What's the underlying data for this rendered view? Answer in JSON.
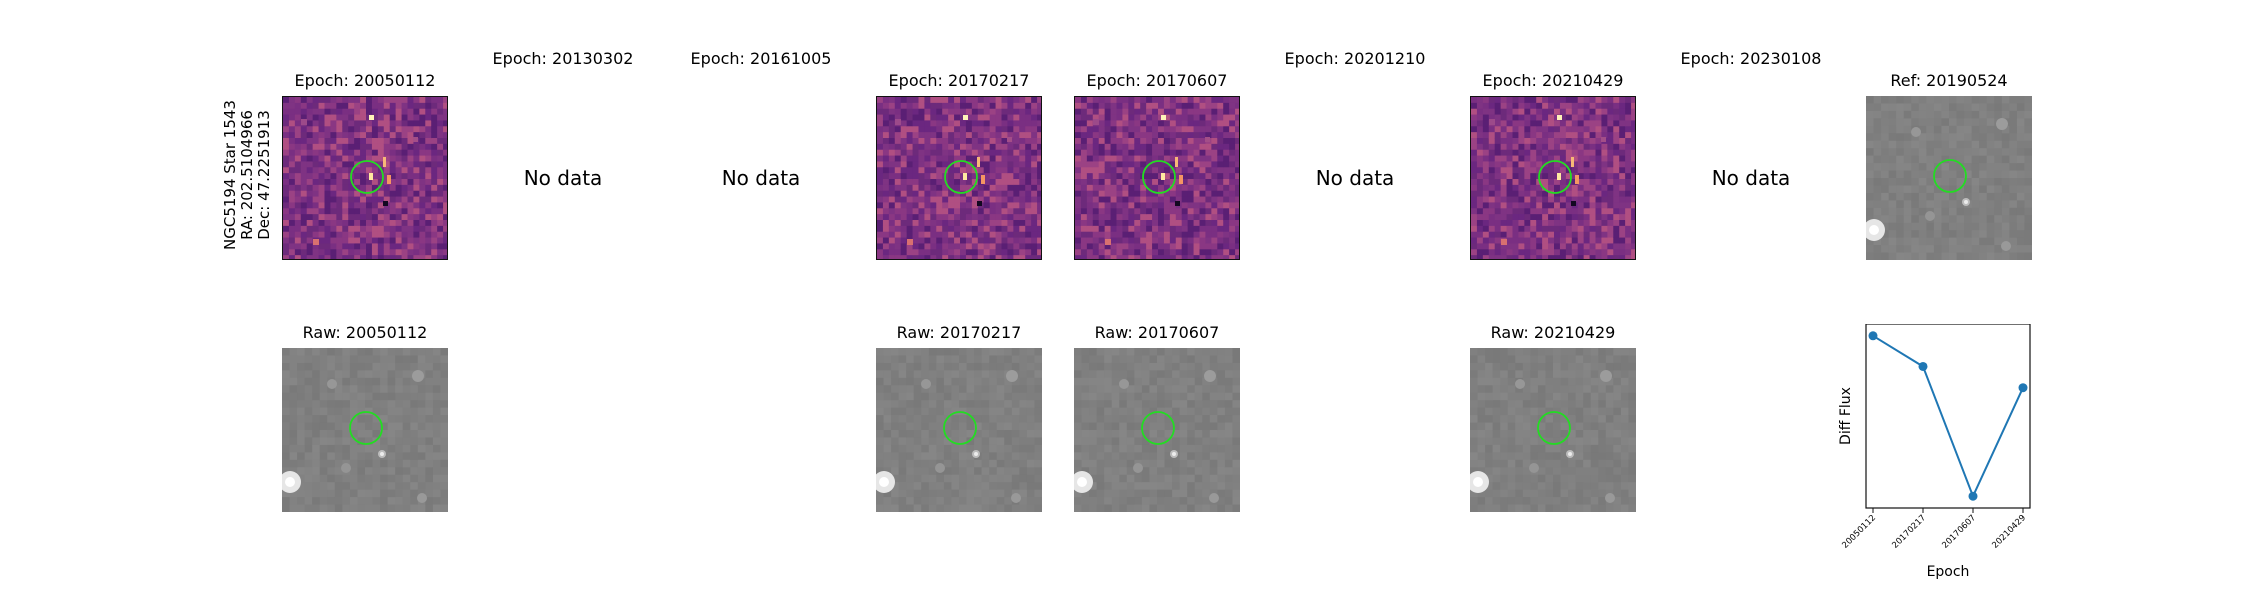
{
  "star": {
    "name": "NGC5194 Star 1543",
    "ra_label": "RA: 202.5104966",
    "dec_label": "Dec: 47.2251913"
  },
  "colors": {
    "circle": "#22dd22",
    "line": "#1f77b4",
    "diff_bg": "#7a2f82",
    "raw_bg": "#858585"
  },
  "epochs": [
    {
      "title": "Epoch: 20050112",
      "has_data": true,
      "raw_title": "Raw: 20050112"
    },
    {
      "title": "Epoch: 20130302",
      "has_data": false,
      "no_data_label": "No data"
    },
    {
      "title": "Epoch: 20161005",
      "has_data": false,
      "no_data_label": "No data"
    },
    {
      "title": "Epoch: 20170217",
      "has_data": true,
      "raw_title": "Raw: 20170217"
    },
    {
      "title": "Epoch: 20170607",
      "has_data": true,
      "raw_title": "Raw: 20170607"
    },
    {
      "title": "Epoch: 20201210",
      "has_data": false,
      "no_data_label": "No data"
    },
    {
      "title": "Epoch: 20210429",
      "has_data": true,
      "raw_title": "Raw: 20210429"
    },
    {
      "title": "Epoch: 20230108",
      "has_data": false,
      "no_data_label": "No data"
    }
  ],
  "reference": {
    "title": "Ref: 20190524"
  },
  "chart_data": {
    "type": "line",
    "x": [
      "20050112",
      "20170217",
      "20170607",
      "20210429"
    ],
    "y": [
      0.88,
      0.75,
      0.2,
      0.66
    ],
    "xlabel": "Epoch",
    "ylabel": "Diff Flux",
    "yticks_shown": false,
    "grid": false,
    "legend": "none"
  }
}
